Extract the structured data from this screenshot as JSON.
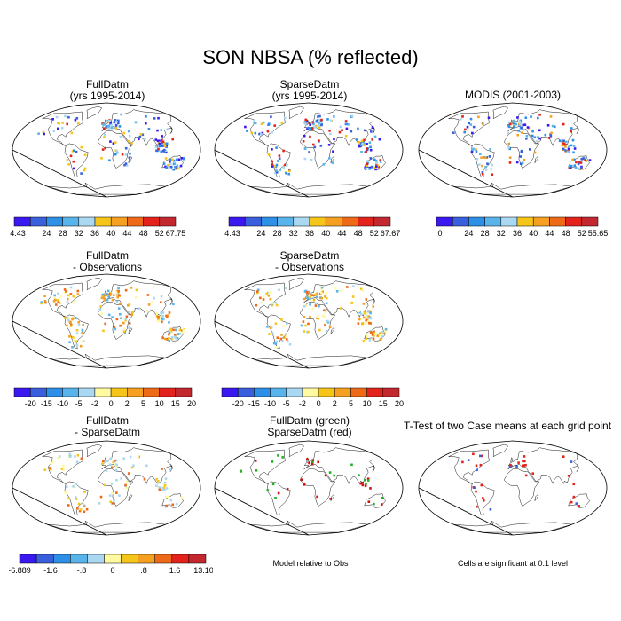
{
  "title": "SON NBSA (% reflected)",
  "chart_data": [
    {
      "type": "map",
      "title_line1": "FullDatm",
      "title_line2": "(yrs 1995-2014)",
      "colorbar_labels": [
        "4.43",
        "24",
        "28",
        "32",
        "36",
        "40",
        "44",
        "48",
        "52",
        "67.75"
      ]
    },
    {
      "type": "map",
      "title_line1": "SparseDatm",
      "title_line2": "(yrs 1995-2014)",
      "colorbar_labels": [
        "4.43",
        "24",
        "28",
        "32",
        "36",
        "40",
        "44",
        "48",
        "52",
        "67.67"
      ]
    },
    {
      "type": "map",
      "title_line1": "MODIS (2001-2003)",
      "title_line2": "",
      "colorbar_labels": [
        "0",
        "24",
        "28",
        "32",
        "36",
        "40",
        "44",
        "48",
        "52",
        "55.65"
      ]
    },
    {
      "type": "map",
      "title_line1": "FullDatm",
      "title_line2": "- Observations",
      "colorbar_labels": [
        "-20",
        "-15",
        "-10",
        "-5",
        "-2",
        "0",
        "2",
        "5",
        "10",
        "15",
        "20"
      ]
    },
    {
      "type": "map",
      "title_line1": "SparseDatm",
      "title_line2": "- Observations",
      "colorbar_labels": [
        "-20",
        "-15",
        "-10",
        "-5",
        "-2",
        "0",
        "2",
        "5",
        "10",
        "15",
        "20"
      ]
    },
    {
      "type": "map",
      "title_line1": "FullDatm",
      "title_line2": "- SparseDatm",
      "colorbar_labels": [
        "-6.889",
        "-1.6",
        "-.8",
        "0",
        ".8",
        "1.6",
        "13.107"
      ]
    },
    {
      "type": "map",
      "title_line1": "FullDatm (green)",
      "title_line2": "SparseDatm (red)",
      "note": "Model relative to Obs"
    },
    {
      "type": "map",
      "title_line1": "T-Test of two Case means at each grid point",
      "title_line2": "",
      "note": "Cells are significant at 0.1 level"
    }
  ],
  "palettes": {
    "abs": [
      "#3a18f0",
      "#3a5fdc",
      "#2d8fe6",
      "#58b4ea",
      "#a9d8f0",
      "#f5c51a",
      "#f5a020",
      "#ef6a18",
      "#e3231b",
      "#c3282f"
    ],
    "diff": [
      "#3a18f0",
      "#3a5fdc",
      "#2d8fe6",
      "#58b4ea",
      "#a9d8f0",
      "#fff9a0",
      "#f5c51a",
      "#f5a020",
      "#ef6a18",
      "#e3231b",
      "#c3282f"
    ],
    "fs": [
      "#3a18f0",
      "#3a5fdc",
      "#2d8fe6",
      "#58b4ea",
      "#a9d8f0",
      "#fff9a0",
      "#f5c51a",
      "#f5a020",
      "#ef6a18",
      "#e3231b",
      "#c3282f"
    ]
  }
}
